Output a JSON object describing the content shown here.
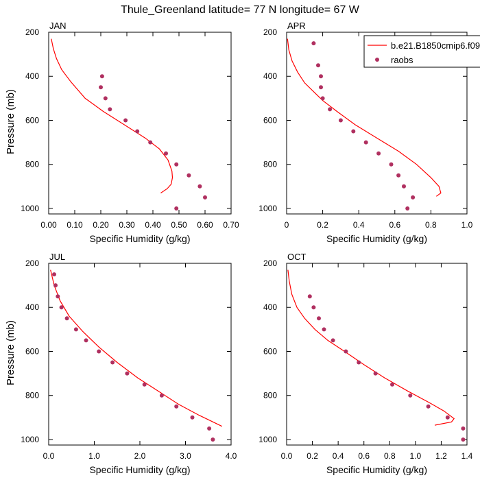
{
  "title": "Thule_Greenland  latitude= 77 N longitude= 67 W",
  "legend": {
    "model_label": "b.e21.B1850cmip6.f09",
    "obs_label": "raobs",
    "placement": "top-right of APR panel"
  },
  "colors": {
    "model": "#ff0000",
    "obs": "#b03060",
    "axis": "#000000",
    "background": "#ffffff"
  },
  "chart_data": [
    {
      "type": "line",
      "panel": "JAN",
      "xlabel": "Specific Humidity (g/kg)",
      "ylabel": "Pressure (mb)",
      "xlim": [
        0,
        0.7
      ],
      "ylim": [
        1025,
        200
      ],
      "xticks": [
        0,
        0.1,
        0.2,
        0.3,
        0.4,
        0.5,
        0.6,
        0.7
      ],
      "xtick_labels": [
        "0.00",
        "0.10",
        "0.20",
        "0.30",
        "0.40",
        "0.50",
        "0.60",
        "0.70"
      ],
      "yticks": [
        200,
        400,
        600,
        800,
        1000
      ],
      "ytick_labels": [
        "200",
        "400",
        "600",
        "800",
        "1000"
      ],
      "series": [
        {
          "kind": "line",
          "x": [
            0.01,
            0.018,
            0.03,
            0.05,
            0.085,
            0.14,
            0.21,
            0.29,
            0.37,
            0.425,
            0.458,
            0.473,
            0.475,
            0.47,
            0.455,
            0.43
          ],
          "y": [
            230,
            275,
            320,
            370,
            425,
            500,
            560,
            620,
            680,
            730,
            780,
            830,
            860,
            890,
            910,
            930
          ]
        },
        {
          "kind": "scatter",
          "x": [
            0.205,
            0.2,
            0.218,
            0.235,
            0.295,
            0.34,
            0.39,
            0.45,
            0.49,
            0.538,
            0.58,
            0.6,
            0.49
          ],
          "y": [
            400,
            450,
            500,
            550,
            600,
            650,
            700,
            750,
            800,
            850,
            900,
            950,
            1000
          ]
        }
      ]
    },
    {
      "type": "line",
      "panel": "APR",
      "xlabel": "Specific Humidity (g/kg)",
      "ylabel": "",
      "xlim": [
        0,
        1.0
      ],
      "ylim": [
        1025,
        200
      ],
      "xticks": [
        0,
        0.2,
        0.4,
        0.6,
        0.8,
        1.0
      ],
      "xtick_labels": [
        "0",
        "0.2",
        "0.4",
        "0.6",
        "0.8",
        "1.0"
      ],
      "yticks": [
        200,
        400,
        600,
        800,
        1000
      ],
      "ytick_labels": [
        "200",
        "400",
        "600",
        "800",
        "1000"
      ],
      "series": [
        {
          "kind": "line",
          "x": [
            0.005,
            0.012,
            0.03,
            0.06,
            0.1,
            0.15,
            0.2,
            0.28,
            0.38,
            0.5,
            0.62,
            0.72,
            0.8,
            0.845,
            0.855,
            0.83
          ],
          "y": [
            230,
            280,
            330,
            380,
            430,
            470,
            510,
            560,
            620,
            680,
            740,
            800,
            860,
            900,
            930,
            945
          ]
        },
        {
          "kind": "scatter",
          "x": [
            0.15,
            0.175,
            0.19,
            0.19,
            0.2,
            0.24,
            0.3,
            0.37,
            0.44,
            0.51,
            0.58,
            0.62,
            0.65,
            0.7,
            0.67
          ],
          "y": [
            250,
            350,
            400,
            450,
            500,
            550,
            600,
            650,
            700,
            750,
            800,
            850,
            900,
            950,
            1000
          ]
        }
      ]
    },
    {
      "type": "line",
      "panel": "JUL",
      "xlabel": "Specific Humidity (g/kg)",
      "ylabel": "Pressure (mb)",
      "xlim": [
        0,
        4.0
      ],
      "ylim": [
        1025,
        200
      ],
      "xticks": [
        0,
        1,
        2,
        3,
        4
      ],
      "xtick_labels": [
        "0.0",
        "1.0",
        "2.0",
        "3.0",
        "4.0"
      ],
      "yticks": [
        200,
        400,
        600,
        800,
        1000
      ],
      "ytick_labels": [
        "200",
        "400",
        "600",
        "800",
        "1000"
      ],
      "series": [
        {
          "kind": "line",
          "x": [
            0.04,
            0.12,
            0.25,
            0.45,
            0.75,
            1.1,
            1.5,
            1.95,
            2.4,
            2.85,
            3.3,
            3.8
          ],
          "y": [
            230,
            300,
            370,
            440,
            510,
            580,
            650,
            720,
            780,
            840,
            890,
            940
          ]
        },
        {
          "kind": "scatter",
          "x": [
            0.12,
            0.15,
            0.2,
            0.28,
            0.4,
            0.6,
            0.82,
            1.1,
            1.4,
            1.72,
            2.1,
            2.48,
            2.8,
            3.15,
            3.52,
            3.6
          ],
          "y": [
            250,
            300,
            350,
            400,
            450,
            500,
            550,
            600,
            650,
            700,
            750,
            800,
            850,
            900,
            950,
            1000
          ]
        }
      ]
    },
    {
      "type": "line",
      "panel": "OCT",
      "xlabel": "Specific Humidity (g/kg)",
      "ylabel": "",
      "xlim": [
        0,
        1.4
      ],
      "ylim": [
        1025,
        200
      ],
      "xticks": [
        0,
        0.2,
        0.4,
        0.6,
        0.8,
        1.0,
        1.2,
        1.4
      ],
      "xtick_labels": [
        "0.0",
        "0.2",
        "0.4",
        "0.6",
        "0.8",
        "1.0",
        "1.2",
        "1.4"
      ],
      "yticks": [
        200,
        400,
        600,
        800,
        1000
      ],
      "ytick_labels": [
        "200",
        "400",
        "600",
        "800",
        "1000"
      ],
      "series": [
        {
          "kind": "line",
          "x": [
            0.01,
            0.02,
            0.04,
            0.08,
            0.14,
            0.22,
            0.32,
            0.45,
            0.6,
            0.76,
            0.94,
            1.1,
            1.22,
            1.3,
            1.28,
            1.15
          ],
          "y": [
            230,
            280,
            340,
            400,
            450,
            500,
            550,
            600,
            660,
            720,
            780,
            830,
            870,
            905,
            920,
            935
          ]
        },
        {
          "kind": "scatter",
          "x": [
            0.18,
            0.21,
            0.25,
            0.29,
            0.36,
            0.46,
            0.56,
            0.69,
            0.82,
            0.96,
            1.1,
            1.25,
            1.37,
            1.37
          ],
          "y": [
            350,
            400,
            450,
            500,
            550,
            600,
            650,
            700,
            750,
            800,
            850,
            900,
            950,
            1000
          ]
        }
      ]
    }
  ]
}
